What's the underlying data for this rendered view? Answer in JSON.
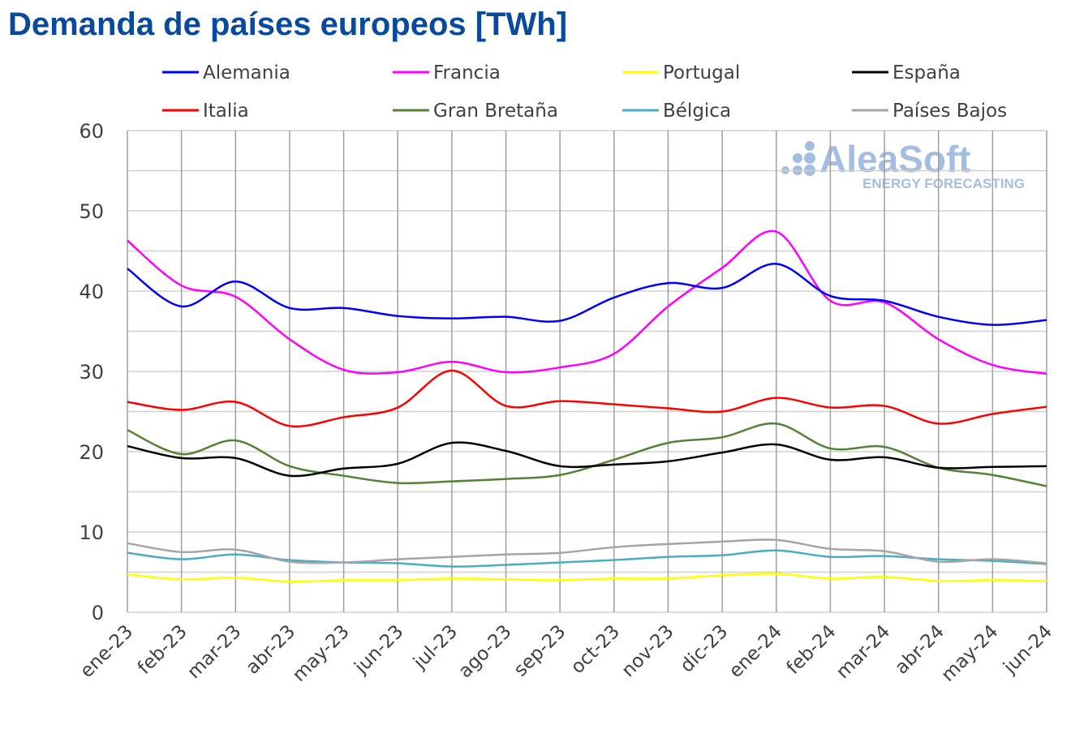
{
  "chart_data": {
    "type": "line",
    "title": "Demanda de países europeos [TWh]",
    "logo": {
      "name": "AleaSoft",
      "tagline": "ENERGY FORECASTING"
    },
    "categories": [
      "ene-23",
      "feb-23",
      "mar-23",
      "abr-23",
      "may-23",
      "jun-23",
      "jul-23",
      "ago-23",
      "sep-23",
      "oct-23",
      "nov-23",
      "dic-23",
      "ene-24",
      "feb-24",
      "mar-24",
      "abr-24",
      "may-24",
      "jun-24"
    ],
    "ylim": [
      0,
      60
    ],
    "yticks": [
      "0",
      "10",
      "20",
      "30",
      "40",
      "50",
      "60"
    ],
    "grid": true,
    "legend": "top",
    "series": [
      {
        "name": "Alemania",
        "color": "#0000ff",
        "values": [
          42.8,
          38.1,
          41.2,
          37.9,
          37.9,
          36.9,
          36.6,
          36.8,
          36.3,
          39.2,
          41.0,
          40.4,
          43.4,
          39.4,
          38.8,
          36.8,
          35.8,
          36.4
        ]
      },
      {
        "name": "Francia",
        "color": "#ff00ff",
        "values": [
          46.3,
          40.7,
          39.3,
          34.0,
          30.2,
          29.9,
          31.2,
          29.9,
          30.5,
          32.2,
          38.1,
          42.9,
          47.4,
          38.8,
          38.6,
          34.0,
          30.8,
          29.7
        ]
      },
      {
        "name": "Portugal",
        "color": "#ffff00",
        "values": [
          4.7,
          4.1,
          4.3,
          3.8,
          4.0,
          4.0,
          4.2,
          4.1,
          4.0,
          4.2,
          4.2,
          4.6,
          4.8,
          4.2,
          4.4,
          3.9,
          4.0,
          3.9
        ]
      },
      {
        "name": "España",
        "color": "#000000",
        "values": [
          20.7,
          19.2,
          19.2,
          17.0,
          17.9,
          18.5,
          21.1,
          20.1,
          18.2,
          18.4,
          18.8,
          19.9,
          20.9,
          19.0,
          19.3,
          18.0,
          18.1,
          18.2
        ]
      },
      {
        "name": "Italia",
        "color": "#ff0000",
        "values": [
          26.2,
          25.2,
          26.2,
          23.2,
          24.3,
          25.5,
          30.1,
          25.7,
          26.3,
          25.9,
          25.4,
          25.0,
          26.7,
          25.5,
          25.7,
          23.5,
          24.7,
          25.6
        ]
      },
      {
        "name": "Gran Bretaña",
        "color": "#548235",
        "values": [
          22.7,
          19.7,
          21.4,
          18.2,
          17.0,
          16.1,
          16.3,
          16.6,
          17.1,
          19.0,
          21.1,
          21.8,
          23.5,
          20.4,
          20.6,
          18.0,
          17.1,
          15.7
        ]
      },
      {
        "name": "Bélgica",
        "color": "#4bacc6",
        "values": [
          7.4,
          6.6,
          7.2,
          6.5,
          6.2,
          6.1,
          5.7,
          5.9,
          6.2,
          6.5,
          6.9,
          7.1,
          7.7,
          6.9,
          7.0,
          6.6,
          6.4,
          6.0
        ]
      },
      {
        "name": "Países Bajos",
        "color": "#a5a5a5",
        "values": [
          8.6,
          7.5,
          7.8,
          6.3,
          6.2,
          6.6,
          6.9,
          7.2,
          7.4,
          8.1,
          8.5,
          8.8,
          9.0,
          7.9,
          7.6,
          6.3,
          6.6,
          6.1
        ]
      }
    ]
  }
}
